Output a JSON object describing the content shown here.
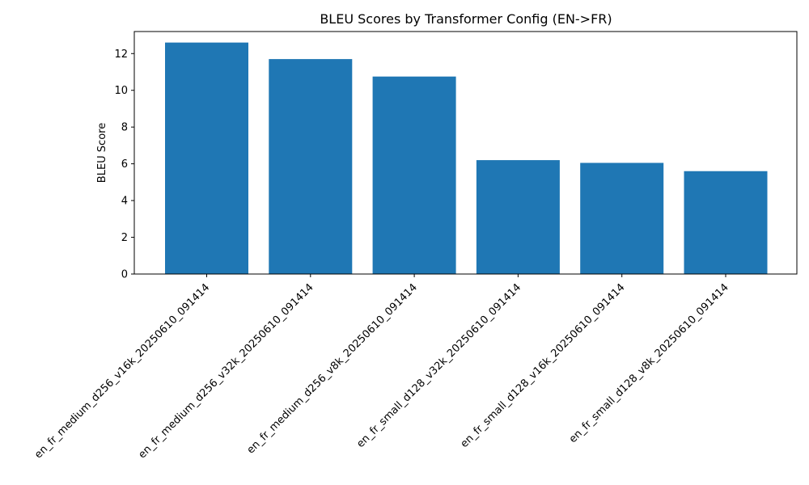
{
  "chart_data": {
    "type": "bar",
    "title": "BLEU Scores by Transformer Config (EN->FR)",
    "xlabel": "",
    "ylabel": "BLEU Score",
    "ylim": [
      0,
      13.2
    ],
    "yticks": [
      0,
      2,
      4,
      6,
      8,
      10,
      12
    ],
    "bar_color": "#1f77b4",
    "grid": false,
    "categories": [
      "en_fr_medium_d256_v16k_20250610_091414",
      "en_fr_medium_d256_v32k_20250610_091414",
      "en_fr_medium_d256_v8k_20250610_091414",
      "en_fr_small_d128_v32k_20250610_091414",
      "en_fr_small_d128_v16k_20250610_091414",
      "en_fr_small_d128_v8k_20250610_091414"
    ],
    "values": [
      12.6,
      11.7,
      10.75,
      6.2,
      6.05,
      5.6
    ]
  }
}
